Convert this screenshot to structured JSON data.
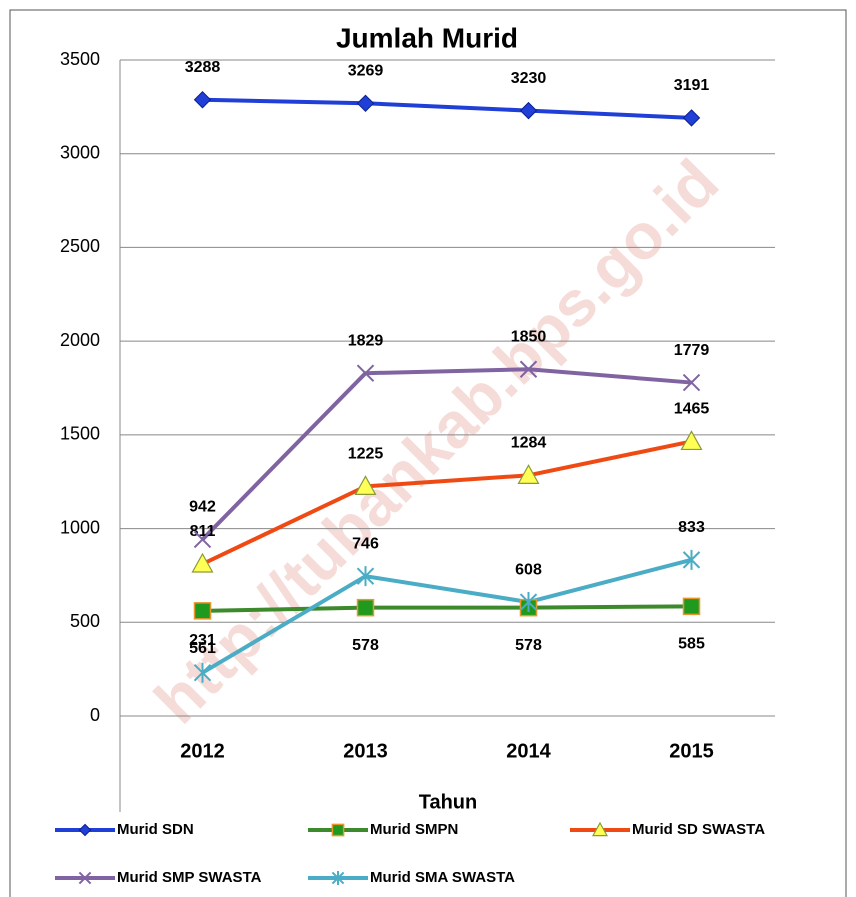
{
  "chart_data": {
    "type": "line",
    "title": "Jumlah Murid",
    "x_label": "Tahun",
    "watermark": "http://tubankab.bps.go.id",
    "categories": [
      "2012",
      "2013",
      "2014",
      "2015"
    ],
    "ylim": [
      0,
      3500
    ],
    "yticks": [
      0,
      500,
      1000,
      1500,
      2000,
      2500,
      3000,
      3500
    ],
    "grid": true,
    "legend": "bottom",
    "series": [
      {
        "name": "Murid SDN",
        "color": "#1f3fd6",
        "marker": "diamond",
        "values": [
          3288,
          3269,
          3230,
          3191
        ]
      },
      {
        "name": "Murid SMPN",
        "color": "#3c8a2c",
        "marker": "square",
        "values": [
          561,
          578,
          578,
          585
        ]
      },
      {
        "name": "Murid SD SWASTA",
        "color": "#f04a14",
        "marker": "triangle",
        "values": [
          811,
          1225,
          1284,
          1465
        ]
      },
      {
        "name": "Murid SMP SWASTA",
        "color": "#8064a2",
        "marker": "x",
        "values": [
          942,
          1829,
          1850,
          1779
        ]
      },
      {
        "name": "Murid SMA SWASTA",
        "color": "#4bacc6",
        "marker": "star",
        "values": [
          231,
          746,
          608,
          833
        ]
      }
    ]
  }
}
